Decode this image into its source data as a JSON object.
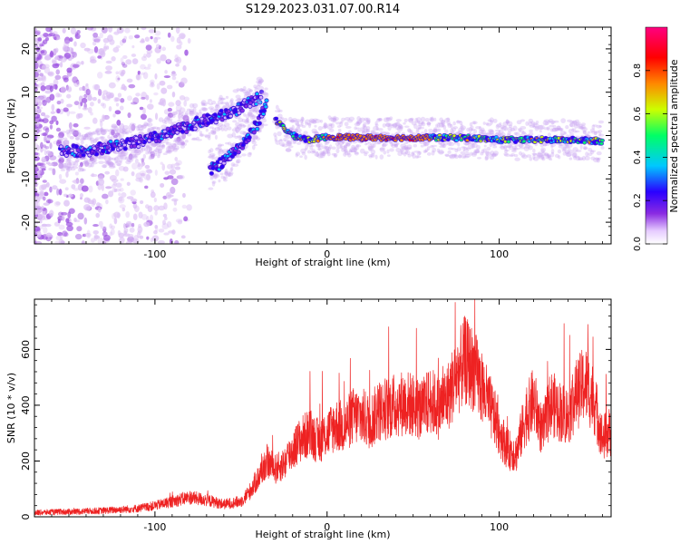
{
  "figure": {
    "title": "S129.2023.031.07.00.R14"
  },
  "chart_data": [
    {
      "type": "heatmap",
      "panel": "spectrogram",
      "xlabel": "Height of straight line (km)",
      "ylabel": "Frequency (Hz)",
      "xlim": [
        -170,
        165
      ],
      "ylim": [
        -25,
        25
      ],
      "x_ticks": [
        -100,
        0,
        100
      ],
      "y_ticks": [
        -20,
        -10,
        0,
        10,
        20
      ],
      "grid": false,
      "colorbar": {
        "label": "Normalized spectral amplitude",
        "range": [
          0,
          1
        ],
        "ticks": [
          0.0,
          0.2,
          0.4,
          0.6,
          0.8
        ],
        "tick_labels": [
          "0.0",
          "0.2",
          "0.4",
          "0.6",
          "0.8"
        ],
        "colormap": [
          "#ffffff",
          "#d9b3ff",
          "#8a2be2",
          "#2a00ff",
          "#00c8ff",
          "#00ff66",
          "#ccff00",
          "#ff8800",
          "#ff0000",
          "#ff0080"
        ]
      },
      "ridges": [
        {
          "x": [
            -155,
            -140,
            -125,
            -110,
            -95,
            -85,
            -75,
            -65,
            -55,
            -45,
            -38
          ],
          "y": [
            -3.5,
            -3.5,
            -2.5,
            -1.5,
            0,
            1.5,
            3,
            4,
            5.5,
            7.5,
            9
          ]
        },
        {
          "x": [
            -68,
            -60,
            -52,
            -45,
            -40,
            -35
          ],
          "y": [
            -8,
            -6,
            -3,
            0,
            3,
            8
          ]
        },
        {
          "x": [
            -30,
            -20,
            -10,
            0,
            20,
            50,
            80,
            100,
            120,
            140,
            160
          ],
          "y": [
            3.5,
            0,
            -1,
            -0.3,
            -0.5,
            -0.5,
            -0.5,
            -1,
            -1,
            -1,
            -1.3
          ]
        }
      ]
    },
    {
      "type": "line",
      "panel": "snr",
      "xlabel": "Height of straight line (km)",
      "ylabel": "SNR (10 * v/v)",
      "xlim": [
        -170,
        165
      ],
      "ylim": [
        0,
        780
      ],
      "x_ticks": [
        -100,
        0,
        100
      ],
      "y_ticks": [
        0,
        200,
        400,
        600
      ],
      "grid": false,
      "line_color": "#ee2222",
      "series": [
        {
          "x": [
            -170,
            -150,
            -130,
            -110,
            -100,
            -90,
            -80,
            -70,
            -60,
            -50,
            -45,
            -40,
            -35,
            -30,
            -25,
            -20,
            -15,
            -10,
            -5,
            0,
            5,
            10,
            15,
            20,
            25,
            30,
            35,
            40,
            45,
            50,
            55,
            60,
            65,
            70,
            75,
            80,
            85,
            90,
            95,
            100,
            105,
            110,
            115,
            120,
            125,
            130,
            135,
            140,
            145,
            150,
            155,
            160,
            165
          ],
          "y": [
            15,
            18,
            22,
            30,
            40,
            55,
            70,
            60,
            45,
            55,
            90,
            140,
            200,
            170,
            190,
            240,
            280,
            300,
            270,
            300,
            330,
            320,
            360,
            360,
            340,
            380,
            390,
            400,
            410,
            400,
            380,
            420,
            390,
            430,
            500,
            560,
            530,
            460,
            390,
            310,
            240,
            230,
            350,
            420,
            300,
            410,
            380,
            360,
            440,
            480,
            420,
            280,
            310
          ]
        }
      ]
    }
  ]
}
